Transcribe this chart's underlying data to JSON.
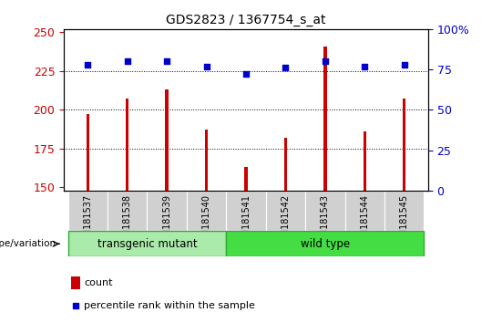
{
  "title": "GDS2823 / 1367754_s_at",
  "samples": [
    "GSM181537",
    "GSM181538",
    "GSM181539",
    "GSM181540",
    "GSM181541",
    "GSM181542",
    "GSM181543",
    "GSM181544",
    "GSM181545"
  ],
  "counts": [
    197,
    207,
    213,
    187,
    163,
    182,
    241,
    186,
    207
  ],
  "percentiles": [
    78,
    80,
    80,
    77,
    72,
    76,
    80,
    77,
    78
  ],
  "ylim_left": [
    148,
    252
  ],
  "ylim_right": [
    0,
    100
  ],
  "yticks_left": [
    150,
    175,
    200,
    225,
    250
  ],
  "yticks_right": [
    0,
    25,
    50,
    75,
    100
  ],
  "groups": [
    {
      "label": "transgenic mutant",
      "start": 0,
      "end": 3,
      "color": "#c8f0c8"
    },
    {
      "label": "wild type",
      "start": 4,
      "end": 8,
      "color": "#44dd44"
    }
  ],
  "bar_color": "#cc0000",
  "dot_color": "#0000cc",
  "bg_color": "#ffffff",
  "tick_area_bg": "#c8c8c8",
  "genotype_label": "genotype/variation",
  "legend_count": "count",
  "legend_percentile": "percentile rank within the sample",
  "left_label_color": "#cc0000",
  "right_label_color": "#0000cc",
  "grid_dotted_levels": [
    175,
    200,
    225
  ],
  "bar_width": 0.08
}
